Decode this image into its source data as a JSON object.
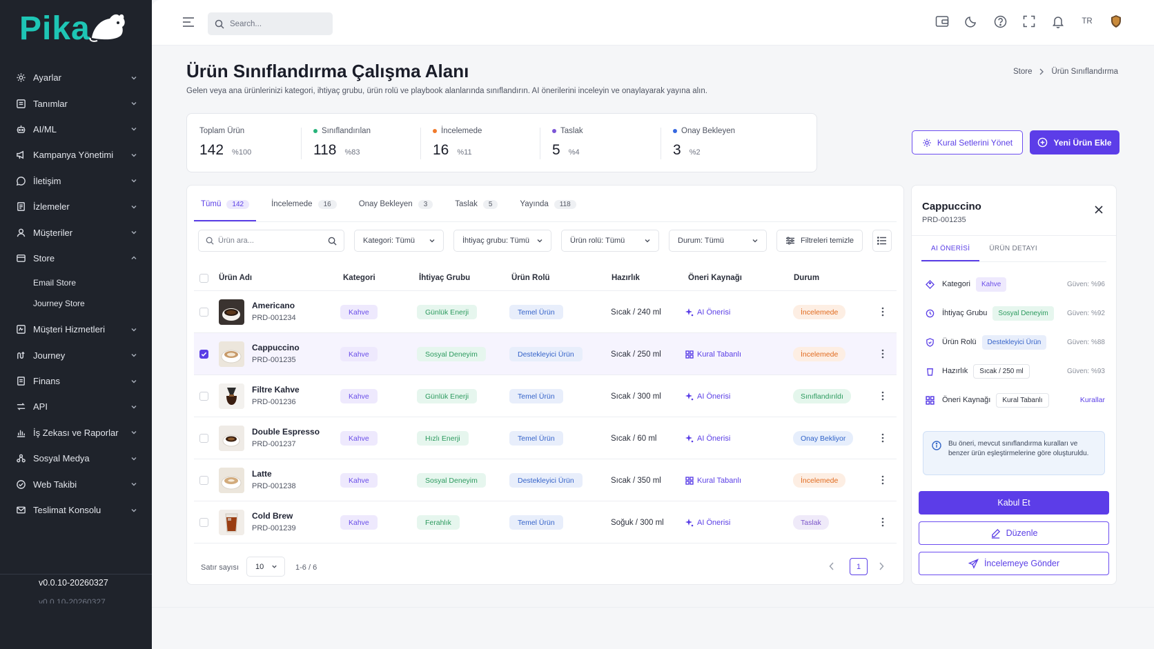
{
  "app": {
    "logo_text": "Pika",
    "version": "v0.0.10-20260327",
    "version_faded": "v0.0.10-20260327"
  },
  "sidebar": {
    "items": [
      {
        "label": "Ayarlar",
        "icon": "gear-icon"
      },
      {
        "label": "Tanımlar",
        "icon": "list-icon"
      },
      {
        "label": "AI/ML",
        "icon": "robot-icon"
      },
      {
        "label": "Kampanya Yönetimi",
        "icon": "megaphone-icon"
      },
      {
        "label": "İletişim",
        "icon": "chat-icon"
      },
      {
        "label": "İzlemeler",
        "icon": "document-icon"
      },
      {
        "label": "Müşteriler",
        "icon": "user-icon"
      },
      {
        "label": "Store",
        "icon": "store-icon",
        "expanded": true,
        "children": [
          {
            "label": "Email Store"
          },
          {
            "label": "Journey Store"
          }
        ]
      },
      {
        "label": "Müşteri Hizmetleri",
        "icon": "support-icon"
      },
      {
        "label": "Journey",
        "icon": "route-icon"
      },
      {
        "label": "Finans",
        "icon": "finance-icon"
      },
      {
        "label": "API",
        "icon": "api-icon"
      },
      {
        "label": "İş Zekası ve Raporlar",
        "icon": "chart-icon"
      },
      {
        "label": "Sosyal Medya",
        "icon": "social-icon"
      },
      {
        "label": "Web Takibi",
        "icon": "web-icon"
      },
      {
        "label": "Teslimat Konsolu",
        "icon": "mail-icon"
      }
    ]
  },
  "topbar": {
    "search_placeholder": "Search...",
    "language": "TR"
  },
  "page": {
    "title": "Ürün Sınıflandırma Çalışma Alanı",
    "subtitle": "Gelen veya ana ürünlerinizi kategori, ihtiyaç grubu, ürün rolü ve playbook alanlarında sınıflandırın. AI önerilerini inceleyin ve onaylayarak yayına alın.",
    "breadcrumb": [
      "Store",
      "Ürün Sınıflandırma"
    ]
  },
  "stats": [
    {
      "label": "Toplam Ürün",
      "value": "142",
      "pct": "%100",
      "color": ""
    },
    {
      "label": "Sınıflandırılan",
      "value": "118",
      "pct": "%83",
      "color": "#27b37a"
    },
    {
      "label": "İncelemede",
      "value": "16",
      "pct": "%11",
      "color": "#f07a2b"
    },
    {
      "label": "Taslak",
      "value": "5",
      "pct": "%4",
      "color": "#7b55d6"
    },
    {
      "label": "Onay Bekleyen",
      "value": "3",
      "pct": "%2",
      "color": "#3567e0"
    }
  ],
  "actions": {
    "manage_rules": "Kural Setlerini Yönet",
    "add_product": "Yeni Ürün Ekle"
  },
  "tabs": [
    {
      "label": "Tümü",
      "count": "142"
    },
    {
      "label": "İncelemede",
      "count": "16"
    },
    {
      "label": "Onay Bekleyen",
      "count": "3"
    },
    {
      "label": "Taslak",
      "count": "5"
    },
    {
      "label": "Yayında",
      "count": "118"
    }
  ],
  "filters": {
    "search_placeholder": "Ürün ara...",
    "category": "Kategori: Tümü",
    "need_group": "İhtiyaç grubu: Tümü",
    "product_role": "Ürün rolü: Tümü",
    "status": "Durum: Tümü",
    "clear": "Filtreleri temizle"
  },
  "table": {
    "headers": [
      "Ürün Adı",
      "Kategori",
      "İhtiyaç Grubu",
      "Ürün Rolü",
      "Hazırlık",
      "Öneri Kaynağı",
      "Durum"
    ],
    "rows": [
      {
        "name": "Americano",
        "code": "PRD-001234",
        "category": "Kahve",
        "need": "Günlük Enerji",
        "role": "Temel Ürün",
        "prep": "Sıcak / 240 ml",
        "source": "AI Önerisi",
        "status": "İncelemede"
      },
      {
        "name": "Cappuccino",
        "code": "PRD-001235",
        "category": "Kahve",
        "need": "Sosyal Deneyim",
        "role": "Destekleyici Ürün",
        "prep": "Sıcak / 250 ml",
        "source": "Kural Tabanlı",
        "status": "İncelemede"
      },
      {
        "name": "Filtre Kahve",
        "code": "PRD-001236",
        "category": "Kahve",
        "need": "Günlük Enerji",
        "role": "Temel Ürün",
        "prep": "Sıcak / 300 ml",
        "source": "AI Önerisi",
        "status": "Sınıflandırıldı"
      },
      {
        "name": "Double Espresso",
        "code": "PRD-001237",
        "category": "Kahve",
        "need": "Hızlı Enerji",
        "role": "Temel Ürün",
        "prep": "Sıcak / 60 ml",
        "source": "AI Önerisi",
        "status": "Onay Bekliyor"
      },
      {
        "name": "Latte",
        "code": "PRD-001238",
        "category": "Kahve",
        "need": "Sosyal Deneyim",
        "role": "Destekleyici Ürün",
        "prep": "Sıcak / 350 ml",
        "source": "Kural Tabanlı",
        "status": "İncelemede"
      },
      {
        "name": "Cold Brew",
        "code": "PRD-001239",
        "category": "Kahve",
        "need": "Ferahlık",
        "role": "Temel Ürün",
        "prep": "Soğuk / 300 ml",
        "source": "AI Önerisi",
        "status": "Taslak"
      }
    ]
  },
  "pagination": {
    "rows_label": "Satır sayısı",
    "rows_value": "10",
    "range": "1-6 / 6",
    "page": "1"
  },
  "detail": {
    "title": "Cappuccino",
    "code": "PRD-001235",
    "tabs": [
      "AI ÖNERİSİ",
      "ÜRÜN DETAYI"
    ],
    "fields": [
      {
        "label": "Kategori",
        "value": "Kahve",
        "confidence": "Güven: %96"
      },
      {
        "label": "İhtiyaç Grubu",
        "value": "Sosyal Deneyim",
        "confidence": "Güven: %92"
      },
      {
        "label": "Ürün Rolü",
        "value": "Destekleyici Ürün",
        "confidence": "Güven: %88"
      },
      {
        "label": "Hazırlık",
        "value": "Sıcak / 250 ml",
        "confidence": "Güven: %93"
      },
      {
        "label": "Öneri Kaynağı",
        "value": "Kural Tabanlı",
        "link": "Kurallar"
      }
    ],
    "info": "Bu öneri, mevcut sınıflandırma kuralları ve benzer ürün eşleştirmelerine göre oluşturuldu.",
    "accept": "Kabul Et",
    "edit": "Düzenle",
    "send_review": "İncelemeye Gönder"
  }
}
